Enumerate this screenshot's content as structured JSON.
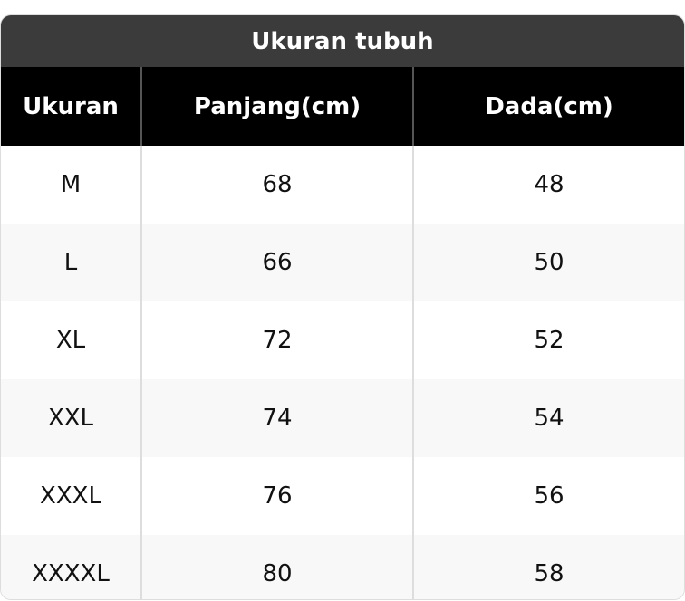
{
  "title": "Ukuran tubuh",
  "headers": [
    "Ukuran",
    "Panjang(cm)",
    "Dada(cm)"
  ],
  "rows": [
    [
      "M",
      "68",
      "48"
    ],
    [
      "L",
      "66",
      "50"
    ],
    [
      "XL",
      "72",
      "52"
    ],
    [
      "XXL",
      "74",
      "54"
    ],
    [
      "XXXL",
      "76",
      "56"
    ],
    [
      "XXXXL",
      "80",
      "58"
    ]
  ]
}
